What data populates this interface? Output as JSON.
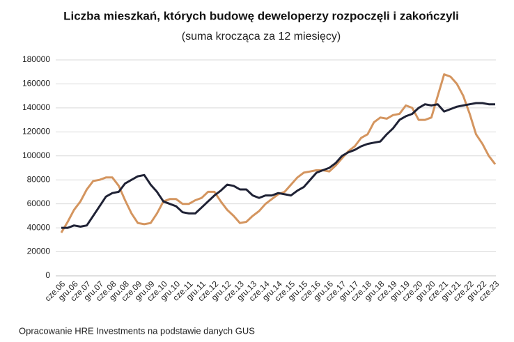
{
  "chart_data": {
    "type": "line",
    "title": "Liczba mieszkań, których budowę deweloperzy rozpoczęli i zakończyli",
    "subtitle": "(suma krocząca za 12 miesięcy)",
    "source": "Opracowanie HRE Investments na podstawie danych GUS",
    "categories": [
      "cze.06",
      null,
      "gru.06",
      null,
      "cze.07",
      null,
      "gru.07",
      null,
      "cze.08",
      null,
      "gru.08",
      null,
      "cze.09",
      null,
      "gru.09",
      null,
      "cze.10",
      null,
      "gru.10",
      null,
      "cze.11",
      null,
      "gru.11",
      null,
      "cze.12",
      null,
      "gru.12",
      null,
      "cze.13",
      null,
      "gru.13",
      null,
      "cze.14",
      null,
      "gru.14",
      null,
      "cze.15",
      null,
      "gru.15",
      null,
      "cze.16",
      null,
      "gru.16",
      null,
      "cze.17",
      null,
      "gru.17",
      null,
      "cze.18",
      null,
      "gru.18",
      null,
      "cze.19",
      null,
      "gru.19",
      null,
      "cze.20",
      null,
      "gru.20",
      null,
      "cze.21",
      null,
      "gru.21",
      null,
      "cze.22",
      null,
      "gru.22",
      null,
      "cze.23"
    ],
    "series": [
      {
        "color": "#d4955f",
        "values": [
          36000,
          45000,
          55000,
          62000,
          72000,
          79000,
          80000,
          82000,
          82000,
          75000,
          63000,
          52000,
          44000,
          43000,
          44000,
          52000,
          62000,
          64000,
          64000,
          60000,
          60000,
          63000,
          65000,
          70000,
          70000,
          62000,
          55000,
          50000,
          44000,
          45000,
          50000,
          54000,
          60000,
          64000,
          68000,
          70000,
          76000,
          82000,
          86000,
          87000,
          88000,
          88000,
          87000,
          92000,
          98000,
          104000,
          108000,
          115000,
          118000,
          128000,
          132000,
          131000,
          134000,
          135000,
          142000,
          140000,
          130000,
          130000,
          132000,
          150000,
          168000,
          166000,
          160000,
          150000,
          135000,
          118000,
          110000,
          100000,
          93000
        ]
      },
      {
        "color": "#1f2235",
        "values": [
          40000,
          40000,
          42000,
          41000,
          42000,
          50000,
          58000,
          66000,
          69000,
          70000,
          77000,
          80000,
          83000,
          84000,
          76000,
          70000,
          62000,
          60000,
          58000,
          53000,
          52000,
          52000,
          57000,
          62000,
          67000,
          71000,
          76000,
          75000,
          72000,
          72000,
          67000,
          65000,
          67000,
          67000,
          69000,
          68000,
          67000,
          71000,
          74000,
          80000,
          86000,
          88000,
          90000,
          94000,
          100000,
          103000,
          105000,
          108000,
          110000,
          111000,
          112000,
          118000,
          123000,
          130000,
          133000,
          135000,
          140000,
          143000,
          142000,
          143000,
          137000,
          139000,
          141000,
          142000,
          143000,
          144000,
          144000,
          143000,
          143000
        ]
      }
    ],
    "ylim": [
      0,
      180000
    ],
    "yticks": [
      0,
      20000,
      40000,
      60000,
      80000,
      100000,
      120000,
      140000,
      160000,
      180000
    ],
    "grid": true
  }
}
